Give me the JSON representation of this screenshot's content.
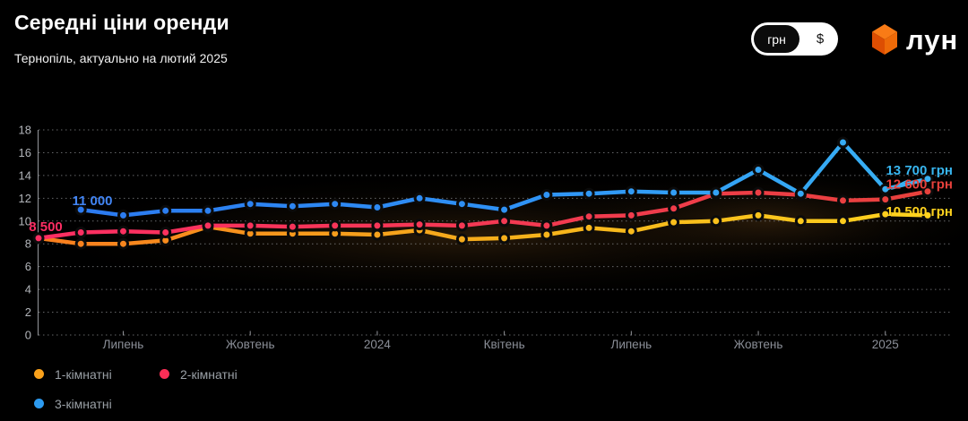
{
  "header": {
    "title": "Середні ціни оренди",
    "subtitle": "Тернопіль, актуально на лютий 2025"
  },
  "currency_toggle": {
    "uah_label": "грн",
    "usd_label": "$",
    "selected": "грн"
  },
  "logo": {
    "text": "лун",
    "cube_colors": {
      "top": "#f97b16",
      "left": "#dd4e02",
      "right": "#ee6a08"
    }
  },
  "chart_data": {
    "type": "line",
    "x_count": 22,
    "x_tick_labels": [
      {
        "label": "Липень",
        "index": 2
      },
      {
        "label": "Жовтень",
        "index": 5
      },
      {
        "label": "2024",
        "index": 8
      },
      {
        "label": "Квітень",
        "index": 11
      },
      {
        "label": "Липень",
        "index": 14
      },
      {
        "label": "Жовтень",
        "index": 17
      },
      {
        "label": "2025",
        "index": 20
      }
    ],
    "y_ticks_thousands": [
      0,
      2,
      4,
      6,
      8,
      10,
      12,
      14,
      16,
      18
    ],
    "ylim": [
      0,
      18000
    ],
    "grid": true,
    "legend_position": "bottom-left",
    "series": [
      {
        "name": "1-кімнатні",
        "color_start": "#f87d1e",
        "color_mid": "#f6b21b",
        "color_end": "#ffd21e",
        "values": [
          8500,
          8000,
          8000,
          8300,
          9500,
          8900,
          8900,
          8900,
          8800,
          9200,
          8400,
          8500,
          8800,
          9400,
          9100,
          9900,
          10000,
          10500,
          10000,
          10000,
          10600,
          10500
        ]
      },
      {
        "name": "2-кімнатні",
        "color_start": "#fd2e63",
        "color_mid": "#f43a52",
        "color_end": "#e8413c",
        "values": [
          8500,
          9000,
          9100,
          9000,
          9600,
          9600,
          9500,
          9600,
          9600,
          9700,
          9600,
          10000,
          9600,
          10400,
          10500,
          11100,
          12400,
          12500,
          12300,
          11800,
          11900,
          12600
        ]
      },
      {
        "name": "3-кімнатні",
        "color_start": "#2b77ee",
        "color_mid": "#2f93f6",
        "color_end": "#38b2f3",
        "values": [
          null,
          11000,
          10500,
          10900,
          10900,
          11500,
          11300,
          11500,
          11200,
          12000,
          11500,
          11000,
          12300,
          12400,
          12600,
          12500,
          12500,
          14500,
          12400,
          16900,
          12800,
          13700
        ]
      }
    ],
    "annotations": {
      "first_red": {
        "text": "8 500",
        "color": "#fd2e63"
      },
      "first_blue": {
        "text": "11 000",
        "color": "#4285f4"
      },
      "last_blue": {
        "text": "13 700 грн",
        "color": "#38b6f0"
      },
      "last_red": {
        "text": "12 600 грн",
        "color": "#e8413c"
      },
      "last_yellow": {
        "text": "10 500 грн",
        "color": "#ffd21e"
      }
    }
  },
  "legend": [
    {
      "label": "1-кімнатні",
      "color": "#f9a11b"
    },
    {
      "label": "2-кімнатні",
      "color": "#fb2e56"
    },
    {
      "label": "3-кімнатні",
      "color": "#2d9bf0"
    }
  ]
}
